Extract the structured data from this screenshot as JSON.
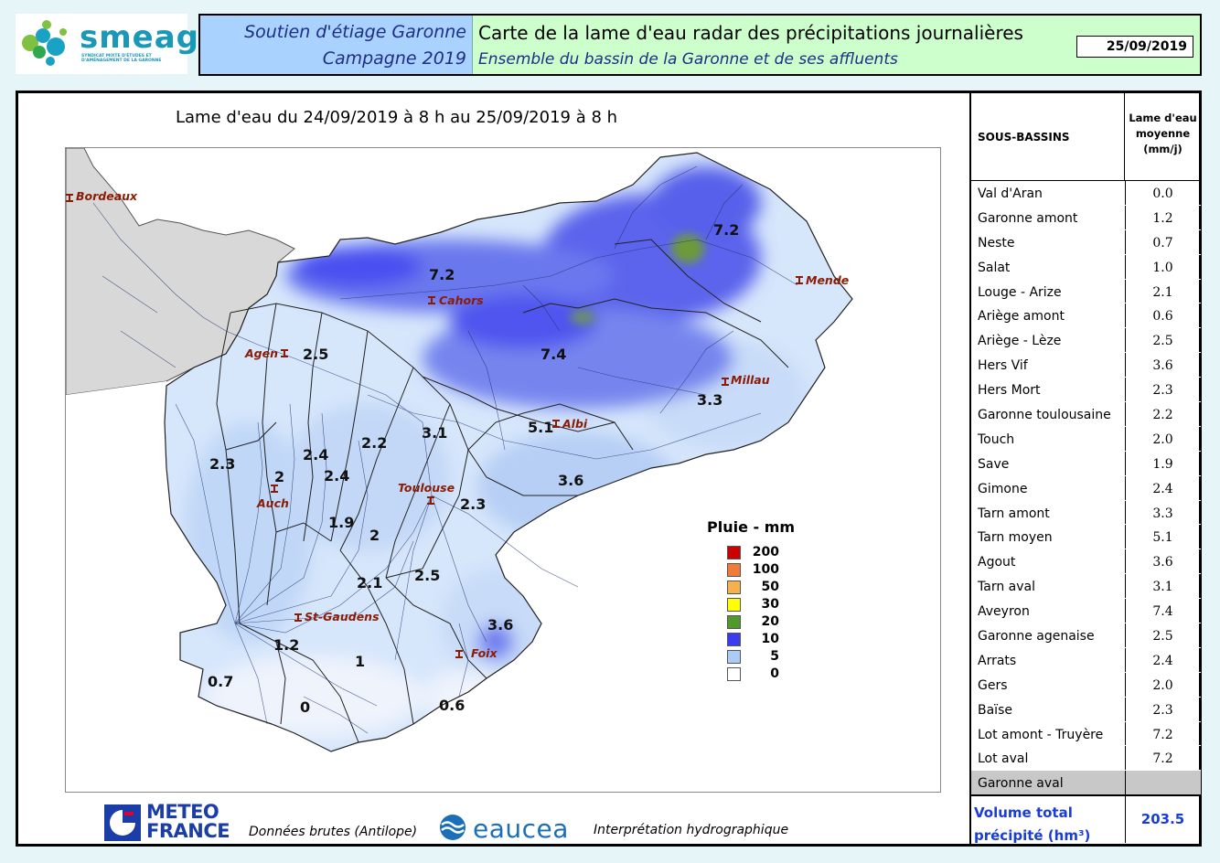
{
  "logo": {
    "name": "smeag",
    "subtitle": "SYNDICAT MIXTE D'ÉTUDES ET D'AMÉNAGEMENT DE LA GARONNE"
  },
  "header": {
    "left_line1": "Soutien d'étiage Garonne",
    "left_line2": "Campagne 2019",
    "right_line1": "Carte de la lame d'eau radar des précipitations journalières",
    "right_line2": "Ensemble du bassin de la Garonne et de ses affluents",
    "date": "25/09/2019"
  },
  "map": {
    "title": "Lame d'eau du 24/09/2019 à 8 h au 25/09/2019 à 8 h",
    "cities": [
      {
        "name": "Bordeaux"
      },
      {
        "name": "Cahors"
      },
      {
        "name": "Mende"
      },
      {
        "name": "Agen"
      },
      {
        "name": "Millau"
      },
      {
        "name": "Albi"
      },
      {
        "name": "Toulouse"
      },
      {
        "name": "Auch"
      },
      {
        "name": "St-Gaudens"
      },
      {
        "name": "Foix"
      }
    ],
    "basin_values": [
      "7.2",
      "7.2",
      "2.5",
      "7.4",
      "3.3",
      "5.1",
      "3.1",
      "2.2",
      "2.4",
      "2.3",
      "2",
      "2.4",
      "3.6",
      "1.9",
      "2",
      "2.3",
      "2.1",
      "2.5",
      "3.6",
      "1.2",
      "1",
      "0.7",
      "0",
      "0.6"
    ],
    "legend": {
      "title": "Pluie - mm",
      "items": [
        {
          "label": "200",
          "color": "#cc0000"
        },
        {
          "label": "100",
          "color": "#f07a3a"
        },
        {
          "label": "50",
          "color": "#f7b04e"
        },
        {
          "label": "30",
          "color": "#ffff00"
        },
        {
          "label": "20",
          "color": "#4f9a2b"
        },
        {
          "label": "10",
          "color": "#3b3bf0"
        },
        {
          "label": "5",
          "color": "#a9cdf7"
        },
        {
          "label": "0",
          "color": "#ffffff"
        }
      ]
    }
  },
  "footer": {
    "meteo_line1": "METEO",
    "meteo_line2": "FRANCE",
    "data_source": "Données brutes (Antilope)",
    "eaucea": "eaucea",
    "interpretation": "Interprétation hydrographique"
  },
  "table": {
    "col1_header": "SOUS-BASSINS",
    "col2_header_l1": "Lame d'eau",
    "col2_header_l2": "moyenne",
    "col2_header_l3": "(mm/j)",
    "rows": [
      {
        "name": "Val d'Aran",
        "value": "0.0"
      },
      {
        "name": "Garonne amont",
        "value": "1.2"
      },
      {
        "name": "Neste",
        "value": "0.7"
      },
      {
        "name": "Salat",
        "value": "1.0"
      },
      {
        "name": "Louge - Arize",
        "value": "2.1"
      },
      {
        "name": "Ariège amont",
        "value": "0.6"
      },
      {
        "name": "Ariège - Lèze",
        "value": "2.5"
      },
      {
        "name": "Hers Vif",
        "value": "3.6"
      },
      {
        "name": "Hers Mort",
        "value": "2.3"
      },
      {
        "name": "Garonne toulousaine",
        "value": "2.2"
      },
      {
        "name": "Touch",
        "value": "2.0"
      },
      {
        "name": "Save",
        "value": "1.9"
      },
      {
        "name": "Gimone",
        "value": "2.4"
      },
      {
        "name": "Tarn amont",
        "value": "3.3"
      },
      {
        "name": "Tarn moyen",
        "value": "5.1"
      },
      {
        "name": "Agout",
        "value": "3.6"
      },
      {
        "name": "Tarn aval",
        "value": "3.1"
      },
      {
        "name": "Aveyron",
        "value": "7.4"
      },
      {
        "name": "Garonne agenaise",
        "value": "2.5"
      },
      {
        "name": "Arrats",
        "value": "2.4"
      },
      {
        "name": "Gers",
        "value": "2.0"
      },
      {
        "name": "Baïse",
        "value": "2.3"
      },
      {
        "name": "Lot amont - Truyère",
        "value": "7.2"
      },
      {
        "name": "Lot aval",
        "value": "7.2"
      },
      {
        "name": "Garonne aval",
        "value": ""
      }
    ],
    "total_label_l1": "Volume total",
    "total_label_l2": "précipité (hm³)",
    "total_value": "203.5"
  }
}
